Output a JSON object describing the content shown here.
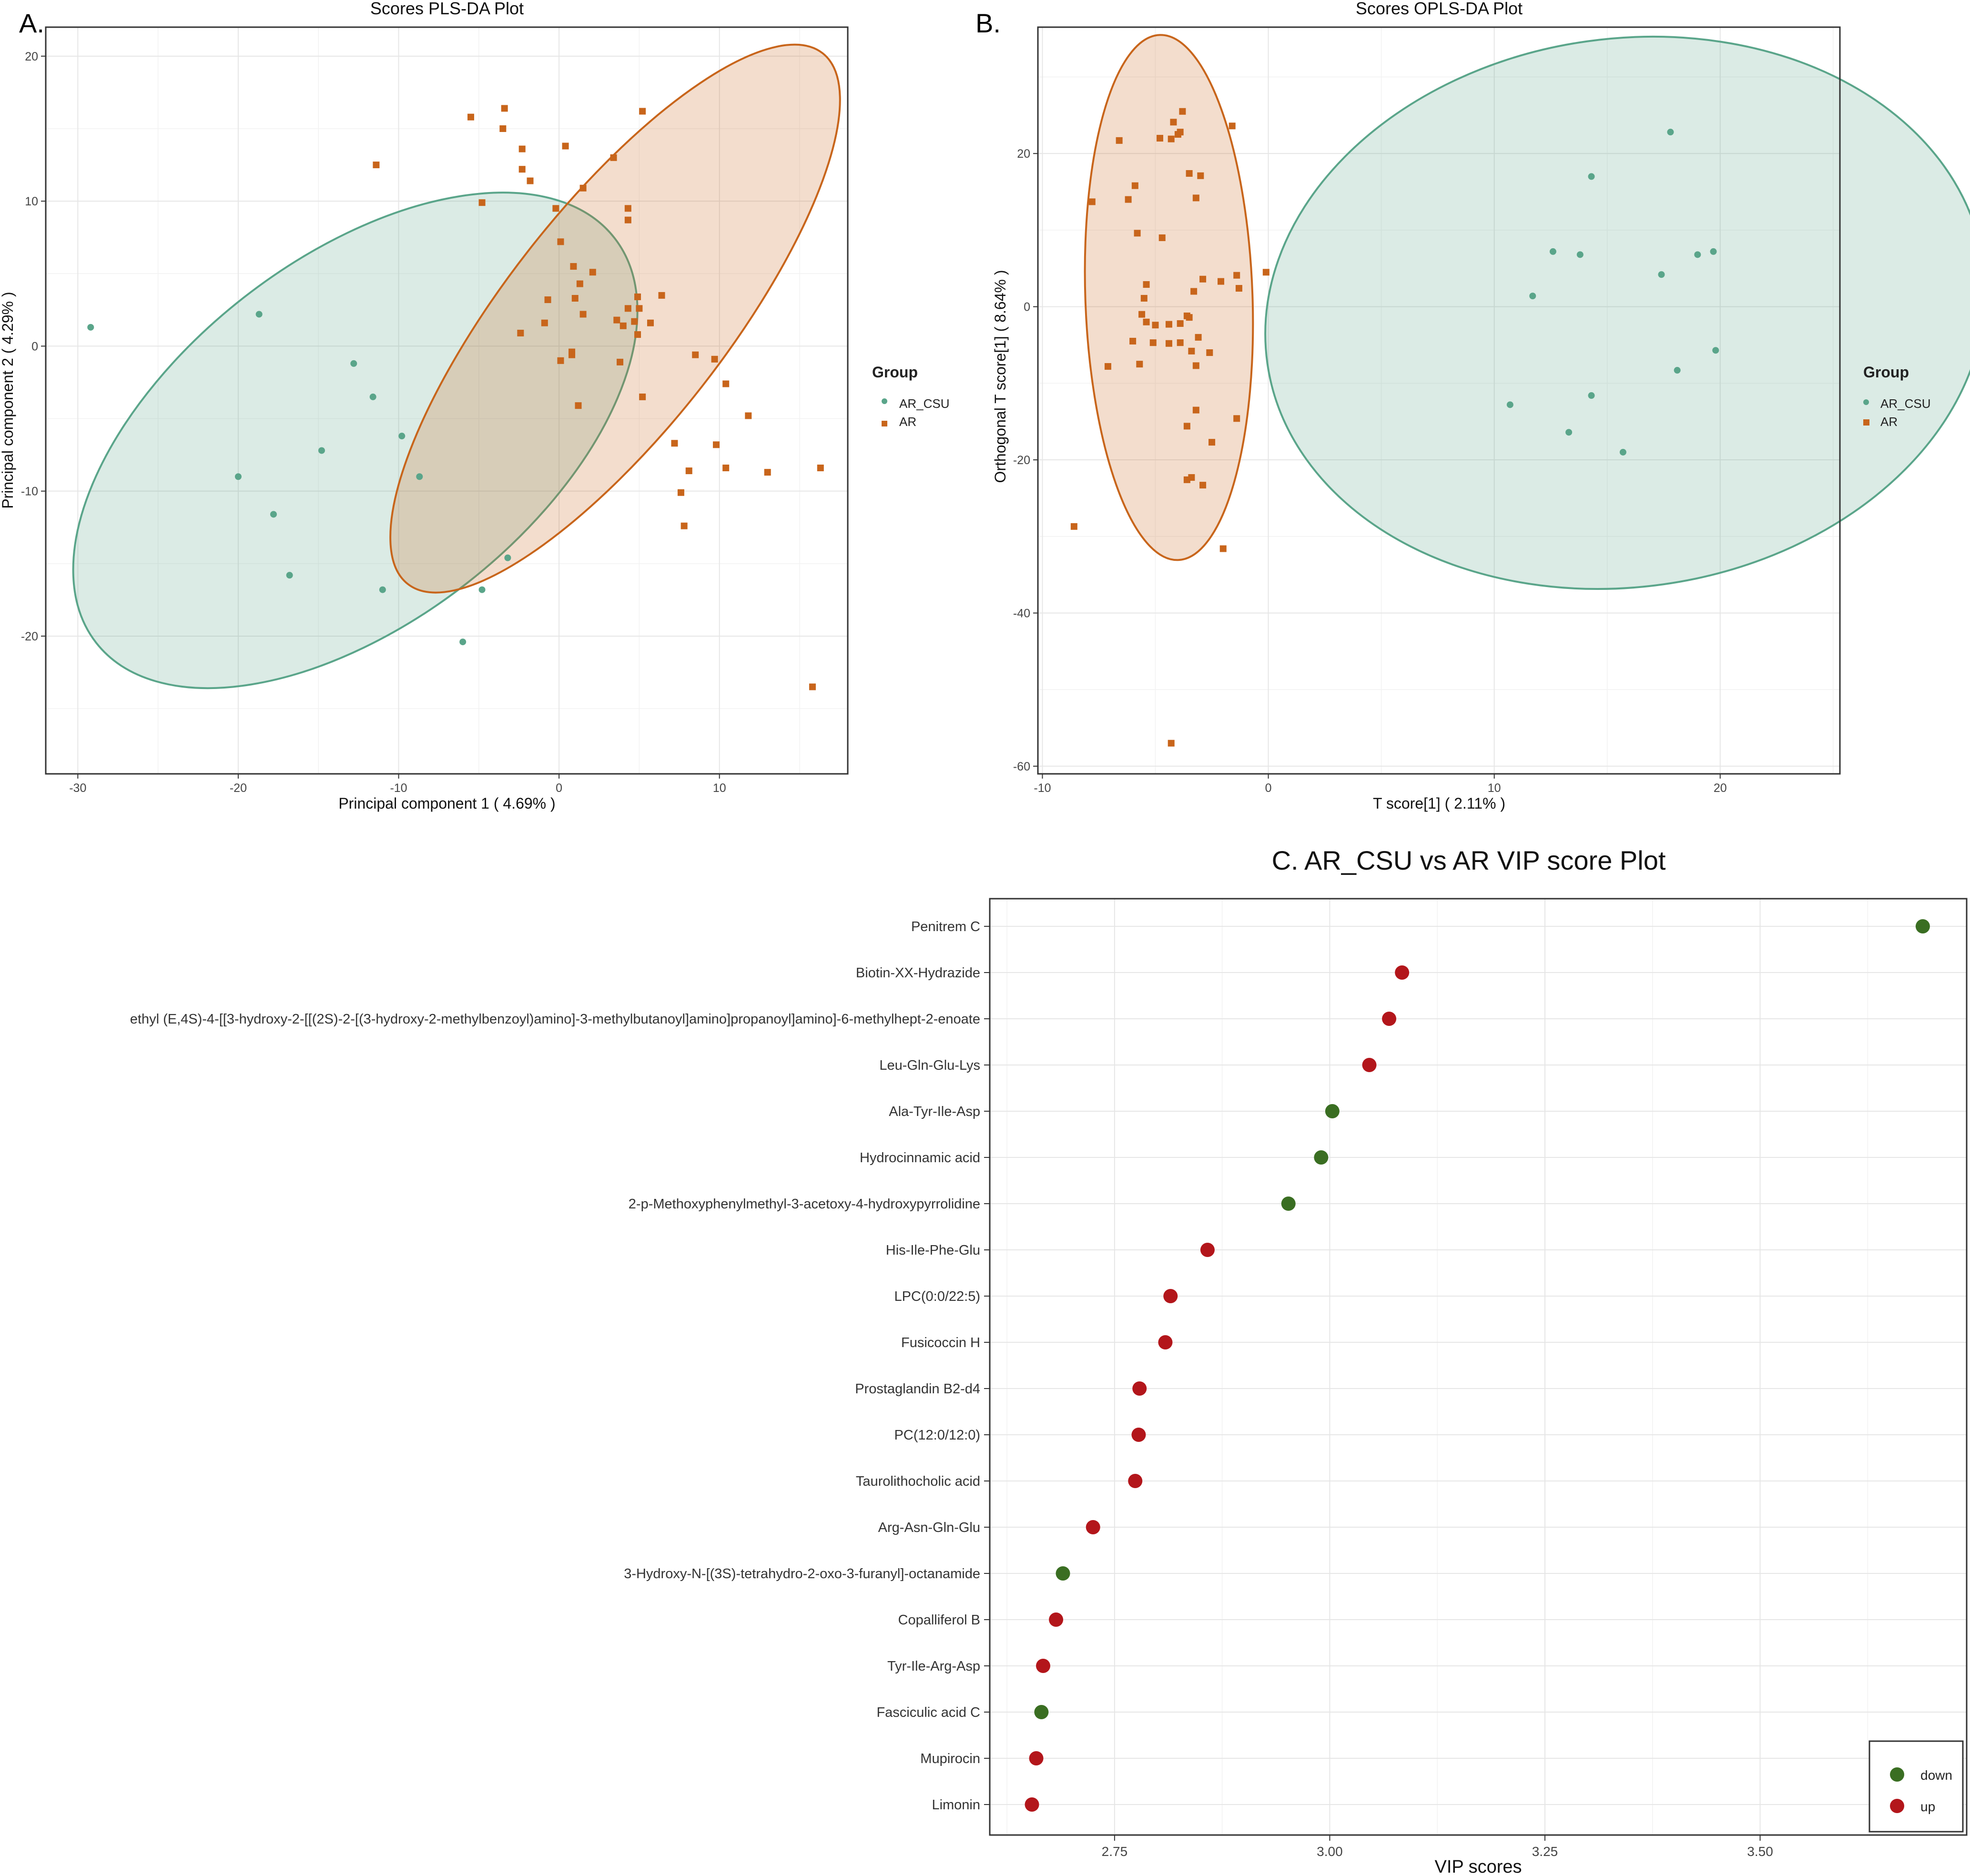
{
  "colors": {
    "ar_csu": "#5aa58a",
    "ar": "#c8651b",
    "down": "#3a6e22",
    "up": "#b3161b"
  },
  "chart_data": [
    {
      "type": "scatter",
      "panel": "A.",
      "title": "Scores PLS-DA Plot",
      "xlabel": "Principal component 1 ( 4.69% )",
      "ylabel": "Principal component 2 ( 4.29% )",
      "xlim": [
        -32,
        18
      ],
      "ylim": [
        -29.5,
        22
      ],
      "xticks": [
        -30,
        -20,
        -10,
        0,
        10
      ],
      "yticks": [
        -20,
        -10,
        0,
        10,
        20
      ],
      "legend_title": "Group",
      "legend_position": "right",
      "series": [
        {
          "name": "AR_CSU",
          "marker": "circle",
          "points": [
            [
              -29.2,
              1.3
            ],
            [
              -18.7,
              2.2
            ],
            [
              -12.8,
              -1.2
            ],
            [
              -11.6,
              -3.5
            ],
            [
              -14.8,
              -7.2
            ],
            [
              -9.8,
              -6.2
            ],
            [
              -8.7,
              -9.0
            ],
            [
              -20.0,
              -9.0
            ],
            [
              -17.8,
              -11.6
            ],
            [
              -16.8,
              -15.8
            ],
            [
              -11.0,
              -16.8
            ],
            [
              -4.8,
              -16.8
            ],
            [
              -3.2,
              -14.6
            ],
            [
              -6.0,
              -20.4
            ]
          ]
        },
        {
          "name": "AR",
          "marker": "square",
          "points": [
            [
              -11.4,
              12.5
            ],
            [
              -5.5,
              15.8
            ],
            [
              -3.4,
              16.4
            ],
            [
              -3.5,
              15.0
            ],
            [
              -2.3,
              13.6
            ],
            [
              -2.3,
              12.2
            ],
            [
              -1.8,
              11.4
            ],
            [
              -4.8,
              9.9
            ],
            [
              0.4,
              13.8
            ],
            [
              1.5,
              10.9
            ],
            [
              3.4,
              13.0
            ],
            [
              5.2,
              16.2
            ],
            [
              -0.2,
              9.5
            ],
            [
              4.3,
              9.5
            ],
            [
              4.3,
              8.7
            ],
            [
              0.1,
              7.2
            ],
            [
              0.9,
              5.5
            ],
            [
              2.1,
              5.1
            ],
            [
              1.3,
              4.3
            ],
            [
              -0.7,
              3.2
            ],
            [
              1.0,
              3.3
            ],
            [
              1.5,
              2.2
            ],
            [
              -0.9,
              1.6
            ],
            [
              -2.4,
              0.9
            ],
            [
              4.9,
              3.4
            ],
            [
              6.4,
              3.5
            ],
            [
              4.3,
              2.6
            ],
            [
              5.0,
              2.6
            ],
            [
              3.6,
              1.8
            ],
            [
              4.0,
              1.4
            ],
            [
              4.7,
              1.7
            ],
            [
              5.7,
              1.6
            ],
            [
              4.9,
              0.8
            ],
            [
              0.8,
              -0.4
            ],
            [
              0.8,
              -0.6
            ],
            [
              0.1,
              -1.0
            ],
            [
              3.8,
              -1.1
            ],
            [
              8.5,
              -0.6
            ],
            [
              9.7,
              -0.9
            ],
            [
              10.4,
              -2.6
            ],
            [
              1.2,
              -4.1
            ],
            [
              5.2,
              -3.5
            ],
            [
              11.8,
              -4.8
            ],
            [
              7.2,
              -6.7
            ],
            [
              9.8,
              -6.8
            ],
            [
              8.1,
              -8.6
            ],
            [
              10.4,
              -8.4
            ],
            [
              13.0,
              -8.7
            ],
            [
              16.3,
              -8.4
            ],
            [
              7.6,
              -10.1
            ],
            [
              7.8,
              -12.4
            ],
            [
              15.8,
              -23.5
            ]
          ]
        }
      ],
      "ellipses": [
        {
          "group": "AR_CSU",
          "center": [
            -12.7,
            -6.5
          ],
          "radii": [
            20.5,
            12.5
          ],
          "rotation_deg": -38
        },
        {
          "group": "AR",
          "center": [
            3.5,
            1.9
          ],
          "radii": [
            21.0,
            7.6
          ],
          "rotation_deg": -52
        }
      ]
    },
    {
      "type": "scatter",
      "panel": "B.",
      "title": "Scores OPLS-DA Plot",
      "xlabel": "T score[1] ( 2.11% )",
      "ylabel": "Orthogonal T score[1] ( 8.64% )",
      "xlim": [
        -10.2,
        25.3
      ],
      "ylim": [
        -61,
        36.5
      ],
      "xticks": [
        -10,
        0,
        10,
        20
      ],
      "yticks": [
        -60,
        -40,
        -20,
        0,
        20
      ],
      "legend_title": "Group",
      "legend_position": "right",
      "series": [
        {
          "name": "AR_CSU",
          "marker": "circle",
          "points": [
            [
              17.8,
              22.8
            ],
            [
              14.3,
              17.0
            ],
            [
              12.6,
              7.2
            ],
            [
              13.8,
              6.8
            ],
            [
              19.0,
              6.8
            ],
            [
              19.7,
              7.2
            ],
            [
              17.4,
              4.2
            ],
            [
              11.7,
              1.4
            ],
            [
              19.8,
              -5.7
            ],
            [
              18.1,
              -8.3
            ],
            [
              10.7,
              -12.8
            ],
            [
              14.3,
              -11.6
            ],
            [
              13.3,
              -16.4
            ],
            [
              15.7,
              -19.0
            ]
          ]
        },
        {
          "name": "AR",
          "marker": "square",
          "points": [
            [
              -3.8,
              25.5
            ],
            [
              -4.2,
              24.1
            ],
            [
              -4.0,
              22.5
            ],
            [
              -3.9,
              22.8
            ],
            [
              -4.8,
              22.0
            ],
            [
              -4.3,
              21.9
            ],
            [
              -6.6,
              21.7
            ],
            [
              -1.6,
              23.6
            ],
            [
              -3.5,
              17.4
            ],
            [
              -3.0,
              17.1
            ],
            [
              -5.9,
              15.8
            ],
            [
              -6.2,
              14.0
            ],
            [
              -7.8,
              13.7
            ],
            [
              -3.2,
              14.2
            ],
            [
              -4.7,
              9.0
            ],
            [
              -5.8,
              9.6
            ],
            [
              -0.1,
              4.5
            ],
            [
              -1.4,
              4.1
            ],
            [
              -2.9,
              3.6
            ],
            [
              -2.1,
              3.3
            ],
            [
              -5.4,
              2.9
            ],
            [
              -1.3,
              2.4
            ],
            [
              -3.3,
              2.0
            ],
            [
              -5.5,
              1.1
            ],
            [
              -5.6,
              -1.0
            ],
            [
              -3.6,
              -1.2
            ],
            [
              -3.5,
              -1.4
            ],
            [
              -5.4,
              -2.0
            ],
            [
              -5.0,
              -2.4
            ],
            [
              -4.4,
              -2.3
            ],
            [
              -3.9,
              -2.2
            ],
            [
              -6.0,
              -4.5
            ],
            [
              -5.1,
              -4.7
            ],
            [
              -3.1,
              -4.0
            ],
            [
              -3.9,
              -4.7
            ],
            [
              -4.4,
              -4.8
            ],
            [
              -3.4,
              -5.8
            ],
            [
              -2.6,
              -6.0
            ],
            [
              -5.7,
              -7.5
            ],
            [
              -3.2,
              -7.7
            ],
            [
              -7.1,
              -7.8
            ],
            [
              -3.2,
              -13.5
            ],
            [
              -1.4,
              -14.6
            ],
            [
              -3.6,
              -15.6
            ],
            [
              -2.5,
              -17.7
            ],
            [
              -3.4,
              -22.3
            ],
            [
              -3.6,
              -22.6
            ],
            [
              -2.9,
              -23.3
            ],
            [
              -8.6,
              -28.7
            ],
            [
              -2.0,
              -31.6
            ],
            [
              -4.3,
              -57.0
            ]
          ]
        }
      ],
      "ellipses": [
        {
          "group": "AR_CSU",
          "center": [
            15.8,
            -0.8
          ],
          "radii": [
            16.0,
            35.8
          ],
          "rotation_deg": -8
        },
        {
          "group": "AR",
          "center": [
            -4.4,
            1.2
          ],
          "radii": [
            3.7,
            34.3
          ],
          "rotation_deg": -2
        }
      ]
    },
    {
      "type": "scatter",
      "panel": "C.",
      "title": "C. AR_CSU vs AR VIP score Plot",
      "xlabel": "VIP scores",
      "ylabel": "",
      "xlim": [
        2.605,
        3.74
      ],
      "xticks": [
        2.75,
        3.0,
        3.25,
        3.5
      ],
      "xtick_labels": [
        "2.75",
        "3.00",
        "3.25",
        "3.50"
      ],
      "legend_position": "bottom-right",
      "legend": [
        "down",
        "up"
      ],
      "categories": [
        "Penitrem C",
        "Biotin-XX-Hydrazide",
        "ethyl (E,4S)-4-[[3-hydroxy-2-[[(2S)-2-[(3-hydroxy-2-methylbenzoyl)amino]-3-methylbutanoyl]amino]propanoyl]amino]-6-methylhept-2-enoate",
        "Leu-Gln-Glu-Lys",
        "Ala-Tyr-Ile-Asp",
        "Hydrocinnamic acid",
        "2-p-Methoxyphenylmethyl-3-acetoxy-4-hydroxypyrrolidine",
        "His-Ile-Phe-Glu",
        "LPC(0:0/22:5)",
        "Fusicoccin H",
        "Prostaglandin B2-d4",
        "PC(12:0/12:0)",
        "Taurolithocholic acid",
        "Arg-Asn-Gln-Glu",
        "3-Hydroxy-N-[(3S)-tetrahydro-2-oxo-3-furanyl]-octanamide",
        "Copalliferol B",
        "Tyr-Ile-Arg-Asp",
        "Fasciculic acid C",
        "Mupirocin",
        "Limonin"
      ],
      "values": [
        3.689,
        3.084,
        3.069,
        3.046,
        3.003,
        2.99,
        2.952,
        2.858,
        2.815,
        2.809,
        2.779,
        2.778,
        2.774,
        2.725,
        2.69,
        2.682,
        2.667,
        2.665,
        2.659,
        2.654
      ],
      "status": [
        "down",
        "up",
        "up",
        "up",
        "down",
        "down",
        "down",
        "up",
        "up",
        "up",
        "up",
        "up",
        "up",
        "up",
        "down",
        "up",
        "up",
        "down",
        "up",
        "up"
      ]
    }
  ]
}
